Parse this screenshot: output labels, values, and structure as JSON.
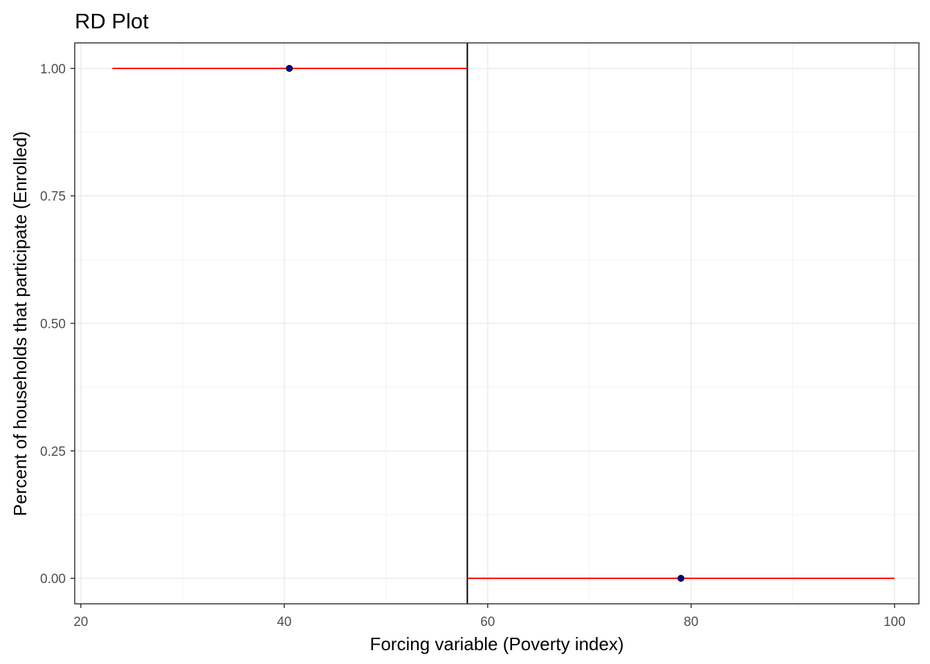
{
  "chart_data": {
    "type": "scatter",
    "title": "RD Plot",
    "xlabel": "Forcing variable (Poverty index)",
    "ylabel": "Percent of households that participate (Enrolled)",
    "xlim": [
      19.4,
      102.4
    ],
    "ylim": [
      -0.05,
      1.05
    ],
    "x_ticks": [
      20,
      40,
      60,
      80,
      100
    ],
    "x_tick_labels": [
      "20",
      "40",
      "60",
      "80",
      "100"
    ],
    "y_ticks": [
      0,
      0.25,
      0.5,
      0.75,
      1.0
    ],
    "y_tick_labels": [
      "0.00",
      "0.25",
      "0.50",
      "0.75",
      "1.00"
    ],
    "x_minor_ticks": [
      30,
      50,
      70,
      90
    ],
    "y_minor_ticks": [
      0.125,
      0.375,
      0.625,
      0.875
    ],
    "grid": true,
    "cutoff": 58,
    "points": [
      {
        "x": 40.5,
        "y": 1.0
      },
      {
        "x": 79.0,
        "y": 0.0
      }
    ],
    "fit_lines": [
      {
        "x": [
          23.1,
          58.0
        ],
        "y": [
          1.0,
          1.0
        ]
      },
      {
        "x": [
          58.0,
          100.0
        ],
        "y": [
          0.0,
          0.0
        ]
      }
    ],
    "colors": {
      "fit_line": "#ff0000",
      "point_fill": "#00008b",
      "cutoff_line": "#000000",
      "grid_major": "#ebebeb",
      "grid_minor": "#f2f2f2",
      "panel_border": "#333333",
      "axis_tick": "#4d4d4d"
    }
  }
}
